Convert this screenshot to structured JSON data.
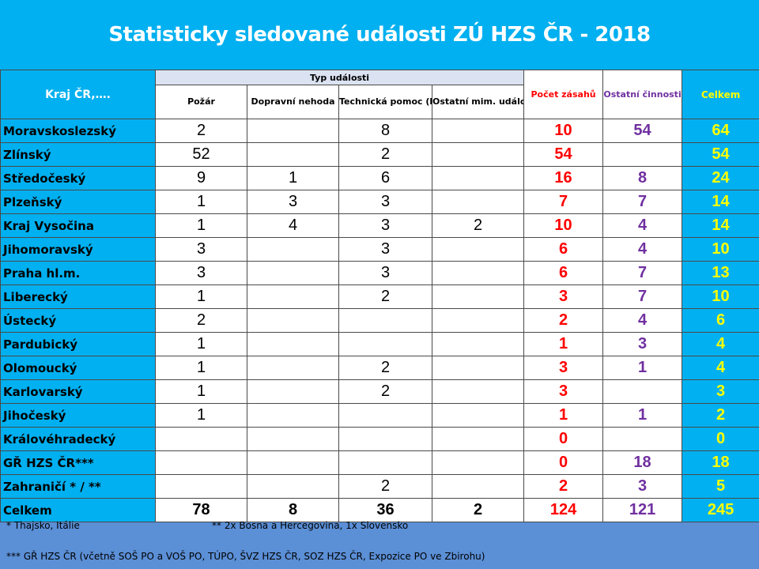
{
  "title": "Statisticky sledované události ZÚ HZS ČR - 2018",
  "headers": {
    "kraj": "Kraj ČR,….",
    "typ_udalosti": "Typ události",
    "pozar": "Požár",
    "dopravni_nehoda": "Dopravní nehoda",
    "technicka_pomoc": "Technická pomoc (havárie)",
    "ostatni_mim": "Ostatní mim. události",
    "pocet_zasahu": "Počet zásahů",
    "ostatni_cinnosti": "Ostatní činnosti",
    "celkem": "Celkem"
  },
  "rows": [
    {
      "kraj": "Moravskoslezský",
      "pozar": "2",
      "dopravni": "",
      "technicka": "8",
      "ostatni_mim": "",
      "pocet": "10",
      "ostatni_cin": "54",
      "celkem": "64"
    },
    {
      "kraj": "Zlínský",
      "pozar": "52",
      "dopravni": "",
      "technicka": "2",
      "ostatni_mim": "",
      "pocet": "54",
      "ostatni_cin": "",
      "celkem": "54"
    },
    {
      "kraj": "Středočeský",
      "pozar": "9",
      "dopravni": "1",
      "technicka": "6",
      "ostatni_mim": "",
      "pocet": "16",
      "ostatni_cin": "8",
      "celkem": "24"
    },
    {
      "kraj": "Plzeňský",
      "pozar": "1",
      "dopravni": "3",
      "technicka": "3",
      "ostatni_mim": "",
      "pocet": "7",
      "ostatni_cin": "7",
      "celkem": "14"
    },
    {
      "kraj": "Kraj Vysočina",
      "pozar": "1",
      "dopravni": "4",
      "technicka": "3",
      "ostatni_mim": "2",
      "pocet": "10",
      "ostatni_cin": "4",
      "celkem": "14"
    },
    {
      "kraj": "Jihomoravský",
      "pozar": "3",
      "dopravni": "",
      "technicka": "3",
      "ostatni_mim": "",
      "pocet": "6",
      "ostatni_cin": "4",
      "celkem": "10"
    },
    {
      "kraj": "Praha hl.m.",
      "pozar": "3",
      "dopravni": "",
      "technicka": "3",
      "ostatni_mim": "",
      "pocet": "6",
      "ostatni_cin": "7",
      "celkem": "13"
    },
    {
      "kraj": "Liberecký",
      "pozar": "1",
      "dopravni": "",
      "technicka": "2",
      "ostatni_mim": "",
      "pocet": "3",
      "ostatni_cin": "7",
      "celkem": "10"
    },
    {
      "kraj": "Ústecký",
      "pozar": "2",
      "dopravni": "",
      "technicka": "",
      "ostatni_mim": "",
      "pocet": "2",
      "ostatni_cin": "4",
      "celkem": "6"
    },
    {
      "kraj": "Pardubický",
      "pozar": "1",
      "dopravni": "",
      "technicka": "",
      "ostatni_mim": "",
      "pocet": "1",
      "ostatni_cin": "3",
      "celkem": "4"
    },
    {
      "kraj": "Olomoucký",
      "pozar": "1",
      "dopravni": "",
      "technicka": "2",
      "ostatni_mim": "",
      "pocet": "3",
      "ostatni_cin": "1",
      "celkem": "4"
    },
    {
      "kraj": "Karlovarský",
      "pozar": "1",
      "dopravni": "",
      "technicka": "2",
      "ostatni_mim": "",
      "pocet": "3",
      "ostatni_cin": "",
      "celkem": "3"
    },
    {
      "kraj": "Jihočeský",
      "pozar": "1",
      "dopravni": "",
      "technicka": "",
      "ostatni_mim": "",
      "pocet": "1",
      "ostatni_cin": "1",
      "celkem": "2"
    },
    {
      "kraj": "Královéhradecký",
      "pozar": "",
      "dopravni": "",
      "technicka": "",
      "ostatni_mim": "",
      "pocet": "0",
      "ostatni_cin": "",
      "celkem": "0"
    },
    {
      "kraj": "GŘ HZS ČR***",
      "pozar": "",
      "dopravni": "",
      "technicka": "",
      "ostatni_mim": "",
      "pocet": "0",
      "ostatni_cin": "18",
      "celkem": "18"
    },
    {
      "kraj": "Zahraničí * / **",
      "pozar": "",
      "dopravni": "",
      "technicka": "2",
      "ostatni_mim": "",
      "pocet": "2",
      "ostatni_cin": "3",
      "celkem": "5"
    }
  ],
  "total": {
    "kraj": "Celkem",
    "pozar": "78",
    "dopravni": "8",
    "technicka": "36",
    "ostatni_mim": "2",
    "pocet": "124",
    "ostatni_cin": "121",
    "celkem": "245"
  },
  "notes": {
    "note1": "* Thajsko, Itálie",
    "note2": "** 2x Bosna a Hercegovina, 1x Slovensko",
    "note3": "*** GŘ HZS ČR (včetně SOŠ PO a VOŠ PO, TÚPO, ŠVZ HZS ČR, SOZ HZS ČR, Expozice PO ve Zbirohu)"
  },
  "colors": {
    "header_cyan": "#00b0f0",
    "pocet_red": "#ff0000",
    "ostatni_purple": "#7030a0",
    "celkem_yellow": "#ffff00",
    "footer_blue": "#5b8fd6"
  }
}
